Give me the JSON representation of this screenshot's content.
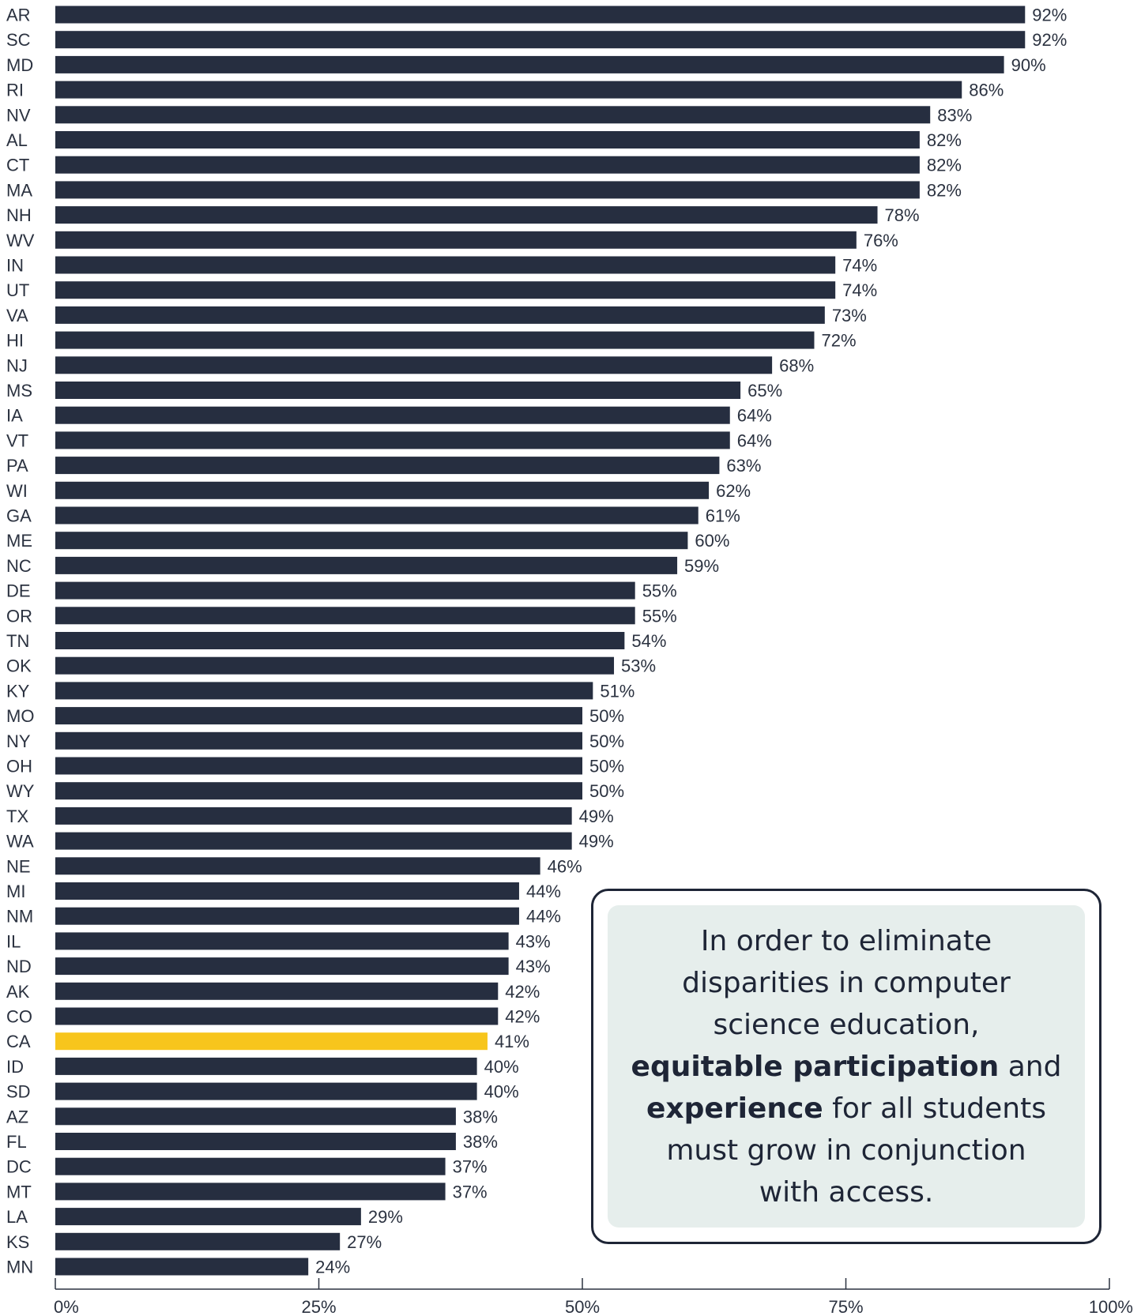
{
  "chart_data": {
    "type": "bar",
    "orientation": "horizontal",
    "categories": [
      "AR",
      "SC",
      "MD",
      "RI",
      "NV",
      "AL",
      "CT",
      "MA",
      "NH",
      "WV",
      "IN",
      "UT",
      "VA",
      "HI",
      "NJ",
      "MS",
      "IA",
      "VT",
      "PA",
      "WI",
      "GA",
      "ME",
      "NC",
      "DE",
      "OR",
      "TN",
      "OK",
      "KY",
      "MO",
      "NY",
      "OH",
      "WY",
      "TX",
      "WA",
      "NE",
      "MI",
      "NM",
      "IL",
      "ND",
      "AK",
      "CO",
      "CA",
      "ID",
      "SD",
      "AZ",
      "FL",
      "DC",
      "MT",
      "LA",
      "KS",
      "MN"
    ],
    "values": [
      92,
      92,
      90,
      86,
      83,
      82,
      82,
      82,
      78,
      76,
      74,
      74,
      73,
      72,
      68,
      65,
      64,
      64,
      63,
      62,
      61,
      60,
      59,
      55,
      55,
      54,
      53,
      51,
      50,
      50,
      50,
      50,
      49,
      49,
      46,
      44,
      44,
      43,
      43,
      42,
      42,
      41,
      40,
      40,
      38,
      38,
      37,
      37,
      29,
      27,
      24
    ],
    "value_labels": [
      "92%",
      "92%",
      "90%",
      "86%",
      "83%",
      "82%",
      "82%",
      "82%",
      "78%",
      "76%",
      "74%",
      "74%",
      "73%",
      "72%",
      "68%",
      "65%",
      "64%",
      "64%",
      "63%",
      "62%",
      "61%",
      "60%",
      "59%",
      "55%",
      "55%",
      "54%",
      "53%",
      "51%",
      "50%",
      "50%",
      "50%",
      "50%",
      "49%",
      "49%",
      "46%",
      "44%",
      "44%",
      "43%",
      "43%",
      "42%",
      "42%",
      "41%",
      "40%",
      "40%",
      "38%",
      "38%",
      "37%",
      "37%",
      "29%",
      "27%",
      "24%"
    ],
    "highlight": "CA",
    "xlim": [
      0,
      100
    ],
    "x_ticks": [
      0,
      25,
      50,
      75,
      100
    ],
    "x_tick_labels": [
      "0%",
      "25%",
      "50%",
      "75%",
      "100%"
    ],
    "title": "",
    "xlabel": "",
    "ylabel": "",
    "grid": false,
    "colors": {
      "bar": "#262e40",
      "highlight": "#f7c51c",
      "axis": "#2b3240"
    }
  },
  "callout": {
    "line1": "In order to eliminate",
    "line2": "disparities in computer",
    "line3": "science education,",
    "bold1": "equitable participation",
    "after_bold1": " and",
    "bold2": "experience",
    "after_bold2": " for all students",
    "line6": "must grow in conjunction",
    "line7": "with access."
  }
}
